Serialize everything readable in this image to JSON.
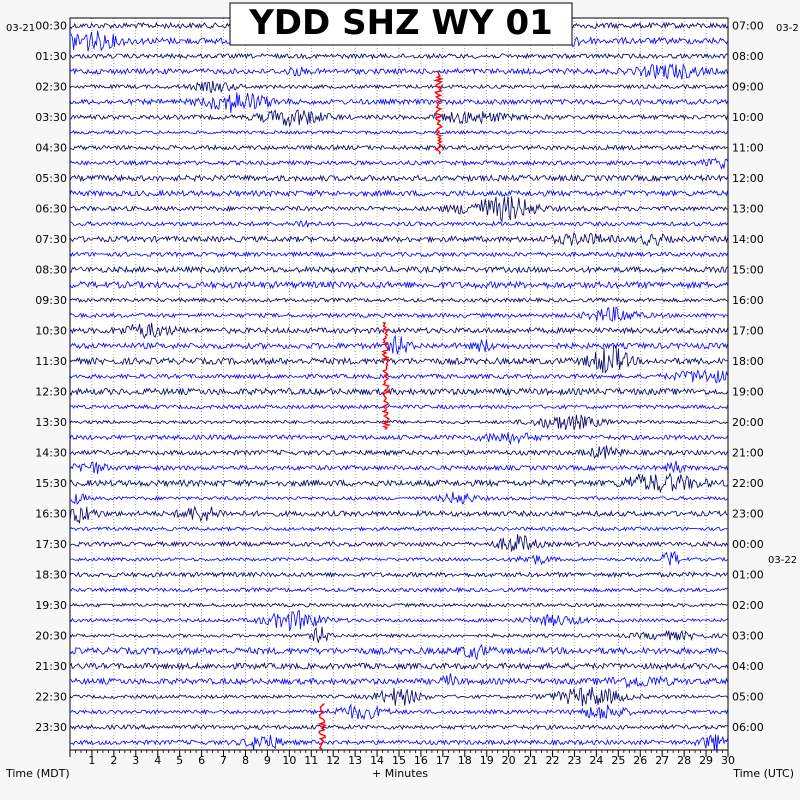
{
  "chart_data": {
    "type": "helicorder",
    "title": "YDD SHZ WY 01",
    "xlabel": "+ Minutes",
    "ylabel_left": "Time (MDT)",
    "ylabel_right": "Time (UTC)",
    "date_left": "03-21",
    "date_right_top": "03-2",
    "date_right_mid": "03-22",
    "x_range": [
      0,
      30
    ],
    "x_ticks": [
      "1",
      "2",
      "3",
      "4",
      "5",
      "6",
      "7",
      "8",
      "9",
      "10",
      "11",
      "12",
      "13",
      "14",
      "15",
      "16",
      "17",
      "18",
      "19",
      "20",
      "21",
      "22",
      "23",
      "24",
      "25",
      "26",
      "27",
      "28",
      "29",
      "30"
    ],
    "rows_per_hour": 2,
    "trace_colors": [
      "#000066",
      "#0000ff"
    ],
    "event_color": "#ff0000",
    "left_labels": [
      "00:30",
      "01:30",
      "02:30",
      "03:30",
      "04:30",
      "05:30",
      "06:30",
      "07:30",
      "08:30",
      "09:30",
      "10:30",
      "11:30",
      "12:30",
      "13:30",
      "14:30",
      "15:30",
      "16:30",
      "17:30",
      "18:30",
      "19:30",
      "20:30",
      "21:30",
      "22:30",
      "23:30"
    ],
    "right_labels": [
      "07:00",
      "08:00",
      "09:00",
      "10:00",
      "11:00",
      "12:00",
      "13:00",
      "14:00",
      "15:00",
      "16:00",
      "17:00",
      "18:00",
      "19:00",
      "20:00",
      "21:00",
      "22:00",
      "23:00",
      "00:00",
      "01:00",
      "02:00",
      "03:00",
      "04:00",
      "05:00",
      "06:00"
    ],
    "events": [
      {
        "minute": 16.8,
        "row_start": 3.0,
        "row_end": 8.5
      },
      {
        "minute": 14.4,
        "row_start": 19.5,
        "row_end": 26.5
      },
      {
        "minute": 11.5,
        "row_start": 44.5,
        "row_end": 47.5
      }
    ]
  }
}
